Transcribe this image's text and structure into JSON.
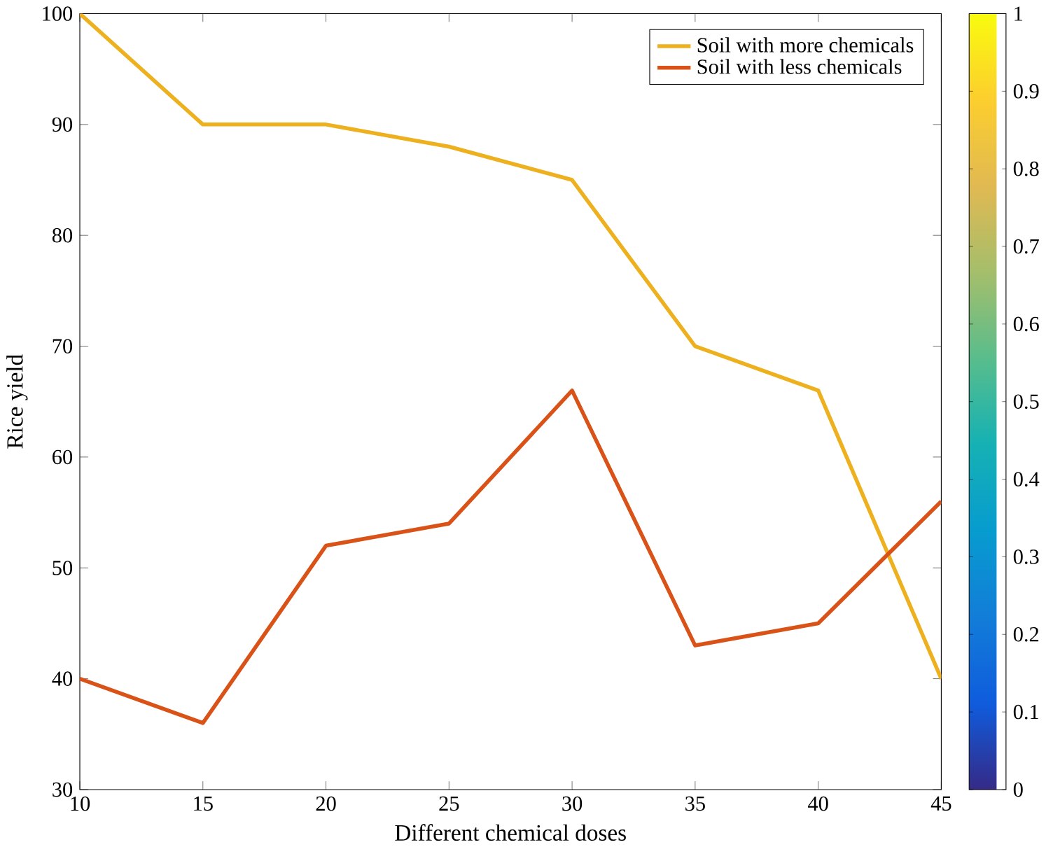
{
  "chart_data": {
    "type": "line",
    "xlabel": "Different chemical doses",
    "ylabel": "Rice yield",
    "x": [
      10,
      15,
      20,
      25,
      30,
      35,
      40,
      45
    ],
    "series": [
      {
        "name": "Soil with more chemicals",
        "color": "#edb120",
        "values": [
          100,
          90,
          90,
          88,
          85,
          70,
          66,
          40
        ]
      },
      {
        "name": "Soil with less chemicals",
        "color": "#d95319",
        "values": [
          40,
          36,
          52,
          54,
          66,
          43,
          45,
          56
        ]
      }
    ],
    "xlim": [
      10,
      45
    ],
    "xticks": [
      10,
      15,
      20,
      25,
      30,
      35,
      40,
      45
    ],
    "ylim": [
      30,
      100
    ],
    "yticks": [
      30,
      40,
      50,
      60,
      70,
      80,
      90,
      100
    ],
    "clim": [
      0,
      1
    ],
    "cticks": [
      0,
      0.1,
      0.2,
      0.3,
      0.4,
      0.5,
      0.6,
      0.7,
      0.8,
      0.9,
      1
    ],
    "legend": "top right",
    "grid": false,
    "marker": "none",
    "line_style": "solid"
  }
}
